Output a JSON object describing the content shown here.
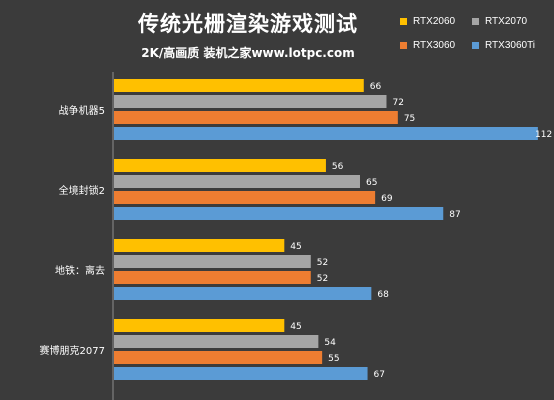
{
  "title": "传统光栅渲染游戏测试",
  "subtitle": "2K/高画质 装机之家www.lotpc.com",
  "colors": {
    "background": "#3b3b3b"
  },
  "chart_data": {
    "type": "bar",
    "orientation": "horizontal",
    "categories": [
      "战争机器5",
      "全境封锁2",
      "地铁：离去",
      "赛博朋克2077"
    ],
    "series": [
      {
        "name": "RTX2060",
        "color": "#ffc000",
        "values": [
          66,
          56,
          45,
          45
        ]
      },
      {
        "name": "RTX2070",
        "color": "#a5a5a5",
        "values": [
          72,
          65,
          52,
          54
        ]
      },
      {
        "name": "RTX3060",
        "color": "#ed7d31",
        "values": [
          75,
          69,
          52,
          55
        ]
      },
      {
        "name": "RTX3060Ti",
        "color": "#5b9bd5",
        "values": [
          112,
          87,
          68,
          67
        ]
      }
    ],
    "xlim": [
      0,
      116
    ],
    "grid": false,
    "legend": "top-right",
    "data_labels": true
  }
}
